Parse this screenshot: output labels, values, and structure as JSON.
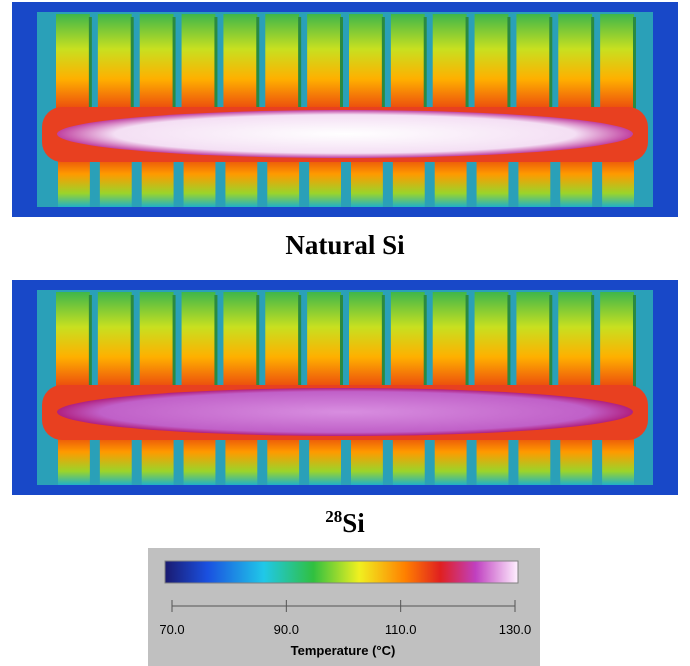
{
  "images": [
    {
      "caption": "Natural Si"
    },
    {
      "caption_superscript": "28",
      "caption": "Si"
    }
  ],
  "colorbar": {
    "lim": [
      70,
      130
    ],
    "ticks": [
      {
        "value": 70,
        "label": "70.0"
      },
      {
        "value": 90,
        "label": "90.0"
      },
      {
        "value": 110,
        "label": "110.0"
      },
      {
        "value": 130,
        "label": "130.0"
      }
    ],
    "label": "Temperature (°C)"
  }
}
